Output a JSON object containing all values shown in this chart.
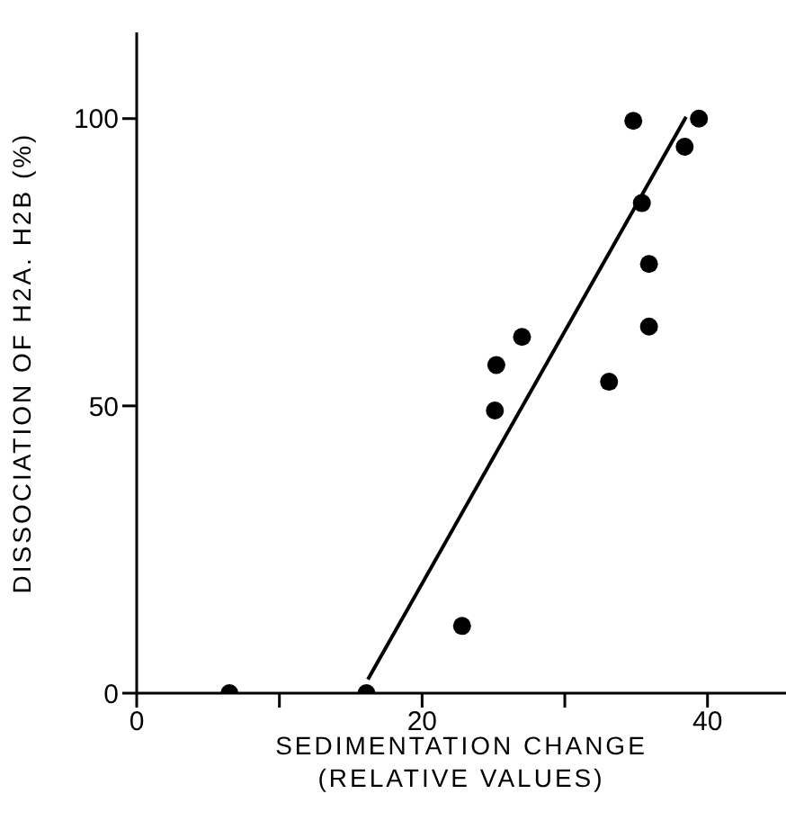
{
  "chart_data": {
    "type": "scatter",
    "xlabel": "SEDIMENTATION CHANGE\n(RELATIVE VALUES)",
    "ylabel": "DISSOCIATION OF H2A. H2B (%)",
    "xlim": [
      0,
      45.5
    ],
    "ylim": [
      0,
      115
    ],
    "xticks": [
      0,
      {
        "value": 10,
        "label": null
      },
      20,
      {
        "value": 30,
        "label": null
      },
      40
    ],
    "yticks": [
      0,
      50,
      100
    ],
    "marker": "circle",
    "series": [
      {
        "color": "#000000",
        "x": [
          6.5,
          16.1,
          22.8,
          25.1,
          25.2,
          27.0,
          33.1,
          34.8,
          35.4,
          35.9,
          35.9,
          38.4,
          39.4
        ],
        "values": [
          0,
          0,
          11.7,
          49.2,
          57.1,
          62,
          54.2,
          99.6,
          85.3,
          74.7,
          63.8,
          95.1,
          100
        ]
      },
      {
        "type": "line",
        "color": "#000000",
        "marker": "none",
        "line_style": "solid",
        "x": [
          16.2,
          38.5
        ],
        "values": [
          2.4,
          100.3
        ]
      }
    ]
  }
}
